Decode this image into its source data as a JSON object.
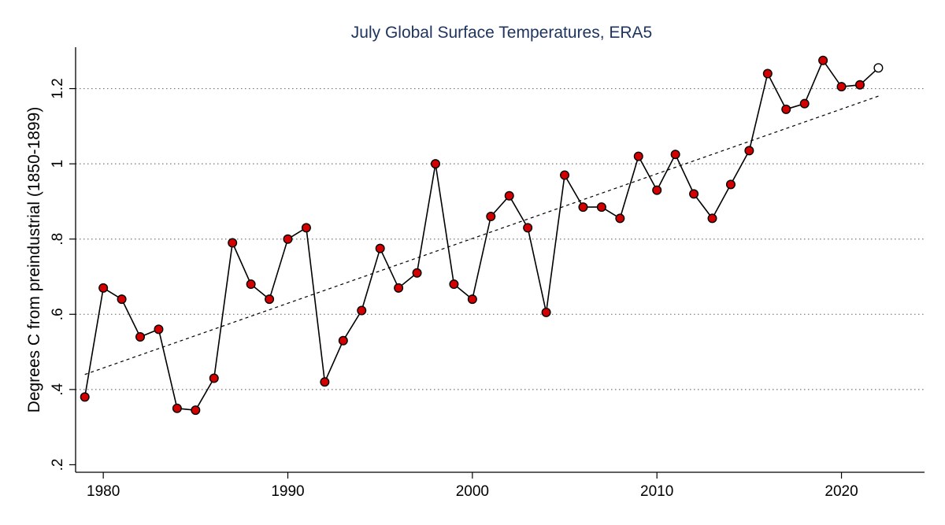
{
  "chart_data": {
    "type": "line",
    "title": "July Global Surface Temperatures, ERA5",
    "xlabel": "",
    "ylabel": "Degrees C from preindustrial (1850-1899)",
    "xlim": [
      1978.5,
      2024.5
    ],
    "ylim": [
      0.18,
      1.31
    ],
    "x_ticks": [
      1980,
      1990,
      2000,
      2010,
      2020
    ],
    "x_tick_labels": [
      "1980",
      "1990",
      "2000",
      "2010",
      "2020"
    ],
    "y_ticks": [
      0.2,
      0.4,
      0.6,
      0.8,
      1.0,
      1.2
    ],
    "y_tick_labels": [
      ".2",
      ".4",
      ".6",
      ".8",
      "1",
      "1.2"
    ],
    "grid": "horizontal-dotted",
    "colors": {
      "marker_fill": "#d40000",
      "title": "#1f3560",
      "line": "#000000",
      "grid": "#777777"
    },
    "series": [
      {
        "name": "July global surface temperature anomaly",
        "x": [
          1979,
          1980,
          1981,
          1982,
          1983,
          1984,
          1985,
          1986,
          1987,
          1988,
          1989,
          1990,
          1991,
          1992,
          1993,
          1994,
          1995,
          1996,
          1997,
          1998,
          1999,
          2000,
          2001,
          2002,
          2003,
          2004,
          2005,
          2006,
          2007,
          2008,
          2009,
          2010,
          2011,
          2012,
          2013,
          2014,
          2015,
          2016,
          2017,
          2018,
          2019,
          2020,
          2021,
          2022
        ],
        "values": [
          0.38,
          0.67,
          0.64,
          0.54,
          0.56,
          0.35,
          0.345,
          0.43,
          0.79,
          0.68,
          0.64,
          0.8,
          0.83,
          0.42,
          0.53,
          0.61,
          0.775,
          0.67,
          0.71,
          1.0,
          0.68,
          0.64,
          0.86,
          0.915,
          0.83,
          0.605,
          0.97,
          0.885,
          0.885,
          0.855,
          1.02,
          0.93,
          1.025,
          0.92,
          0.855,
          0.945,
          1.035,
          1.24,
          1.145,
          1.16,
          1.275,
          1.205,
          1.21,
          1.255
        ],
        "highlight_last_open": true
      },
      {
        "name": "Linear trend",
        "style": "dashed",
        "x": [
          1979,
          2022
        ],
        "values": [
          0.44,
          1.18
        ]
      }
    ]
  }
}
